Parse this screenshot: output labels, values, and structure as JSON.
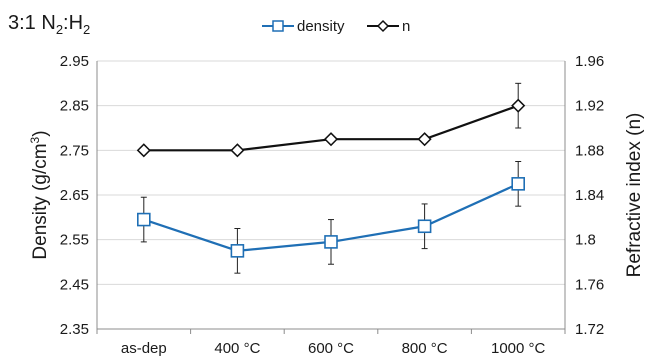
{
  "chart_data": {
    "type": "line",
    "title_parts": {
      "pre": "3:1 N",
      "sub1": "2",
      "mid": ":H",
      "sub2": "2"
    },
    "categories": [
      "as-dep",
      "400 °C",
      "600 °C",
      "800 °C",
      "1000 °C"
    ],
    "y_left": {
      "label": "Density (g/cm",
      "label_sup": "3",
      "label_end": ")",
      "ylim": [
        2.35,
        2.95
      ],
      "ticks": [
        2.35,
        2.45,
        2.55,
        2.65,
        2.75,
        2.85,
        2.95
      ],
      "tick_labels": [
        "2.35",
        "2.45",
        "2.55",
        "2.65",
        "2.75",
        "2.85",
        "2.95"
      ]
    },
    "y_right": {
      "label": "Refractive index (n)",
      "ylim": [
        1.72,
        1.96
      ],
      "ticks": [
        1.72,
        1.76,
        1.8,
        1.84,
        1.88,
        1.92,
        1.96
      ],
      "tick_labels": [
        "1.72",
        "1.76",
        "1.8",
        "1.84",
        "1.88",
        "1.92",
        "1.96"
      ]
    },
    "grid": "horizontal",
    "legend_position": "top-center",
    "series": [
      {
        "name": "density",
        "axis": "left",
        "color": "#1f6fb5",
        "marker": "square",
        "values": [
          2.595,
          2.525,
          2.545,
          2.58,
          2.675
        ],
        "error": [
          0.05,
          0.05,
          0.05,
          0.05,
          0.05
        ]
      },
      {
        "name": "n",
        "axis": "right",
        "color": "#111111",
        "marker": "diamond",
        "values": [
          1.88,
          1.88,
          1.89,
          1.89,
          1.92
        ],
        "error": [
          0,
          0,
          0,
          0,
          0.02
        ]
      }
    ]
  }
}
